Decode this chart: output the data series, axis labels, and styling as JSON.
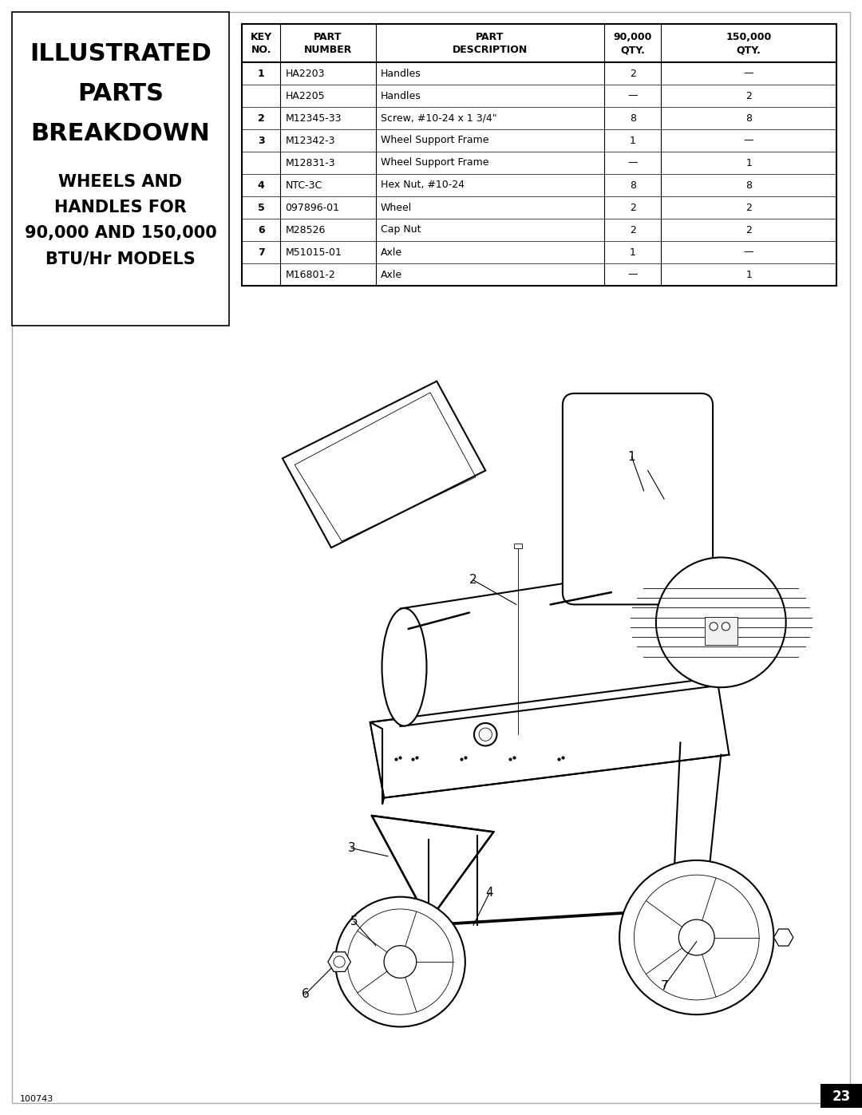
{
  "page_bg": "#ffffff",
  "left_panel_title_lines": [
    "ILLUSTRATED",
    "PARTS",
    "BREAKDOWN"
  ],
  "left_panel_subtitle_lines": [
    "WHEELS AND",
    "HANDLES FOR",
    "90,000 AND 150,000",
    "BTU/Hr MODELS"
  ],
  "table_headers": [
    "KEY\nNO.",
    "PART\nNUMBER",
    "PART\nDESCRIPTION",
    "90,000\nQTY.",
    "150,000\nQTY."
  ],
  "table_rows": [
    [
      "1",
      "HA2203",
      "Handles",
      "2",
      "—"
    ],
    [
      "",
      "HA2205",
      "Handles",
      "—",
      "2"
    ],
    [
      "2",
      "M12345-33",
      "Screw, #10-24 x 1 3/4\"",
      "8",
      "8"
    ],
    [
      "3",
      "M12342-3",
      "Wheel Support Frame",
      "1",
      "—"
    ],
    [
      "",
      "M12831-3",
      "Wheel Support Frame",
      "—",
      "1"
    ],
    [
      "4",
      "NTC-3C",
      "Hex Nut, #10-24",
      "8",
      "8"
    ],
    [
      "5",
      "097896-01",
      "Wheel",
      "2",
      "2"
    ],
    [
      "6",
      "M28526",
      "Cap Nut",
      "2",
      "2"
    ],
    [
      "7",
      "M51015-01",
      "Axle",
      "1",
      "—"
    ],
    [
      "",
      "M16801-2",
      "Axle",
      "—",
      "1"
    ]
  ],
  "footer_text": "100743",
  "page_number": "23"
}
